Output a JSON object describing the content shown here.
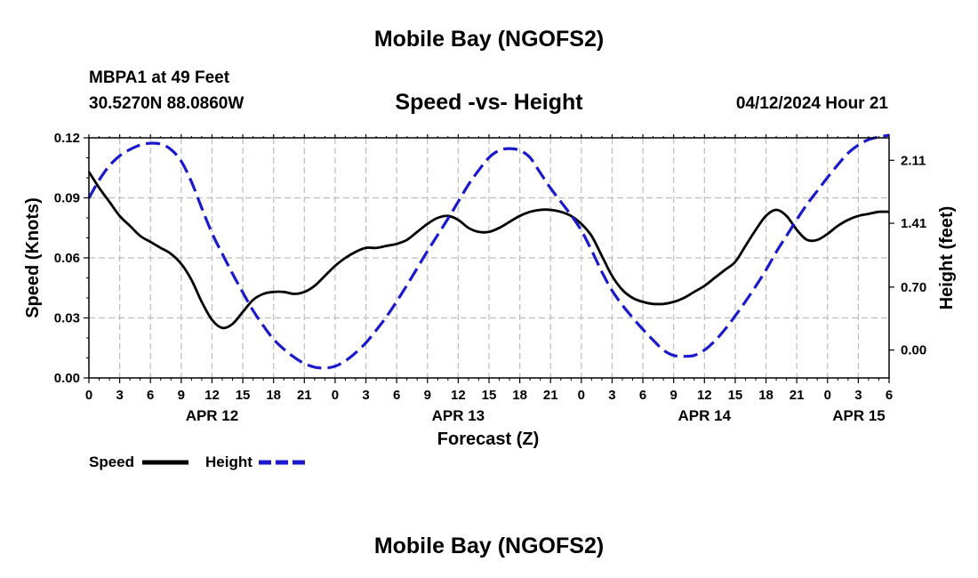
{
  "header": {
    "title": "Mobile Bay (NGOFS2)",
    "station": "MBPA1 at 49 Feet",
    "coordinates": "30.5270N  88.0860W",
    "subtitle": "Speed -vs- Height",
    "datestamp": "04/12/2024 Hour 21"
  },
  "footer": {
    "title": "Mobile Bay (NGOFS2)"
  },
  "legend": {
    "speed_label": "Speed",
    "height_label": "Height"
  },
  "colors": {
    "speed": "#000000",
    "height": "#1a1acc",
    "grid": "#bdbdbd"
  },
  "chart_data": {
    "type": "line",
    "title": "Speed -vs- Height",
    "xlabel": "Forecast (Z)",
    "ylabel": "Speed (Knots)",
    "y2label": "Height (feet)",
    "x_unit": "hours from APR 12 00Z",
    "xlim": [
      0,
      78
    ],
    "ylim": [
      0,
      0.12
    ],
    "y2lim": [
      -0.31,
      2.36
    ],
    "x_ticks": [
      {
        "x": 0,
        "label": "0"
      },
      {
        "x": 3,
        "label": "3"
      },
      {
        "x": 6,
        "label": "6"
      },
      {
        "x": 9,
        "label": "9"
      },
      {
        "x": 12,
        "label": "12"
      },
      {
        "x": 15,
        "label": "15"
      },
      {
        "x": 18,
        "label": "18"
      },
      {
        "x": 21,
        "label": "21"
      },
      {
        "x": 24,
        "label": "0"
      },
      {
        "x": 27,
        "label": "3"
      },
      {
        "x": 30,
        "label": "6"
      },
      {
        "x": 33,
        "label": "9"
      },
      {
        "x": 36,
        "label": "12"
      },
      {
        "x": 39,
        "label": "15"
      },
      {
        "x": 42,
        "label": "18"
      },
      {
        "x": 45,
        "label": "21"
      },
      {
        "x": 48,
        "label": "0"
      },
      {
        "x": 51,
        "label": "3"
      },
      {
        "x": 54,
        "label": "6"
      },
      {
        "x": 57,
        "label": "9"
      },
      {
        "x": 60,
        "label": "12"
      },
      {
        "x": 63,
        "label": "15"
      },
      {
        "x": 66,
        "label": "18"
      },
      {
        "x": 69,
        "label": "21"
      },
      {
        "x": 72,
        "label": "0"
      },
      {
        "x": 75,
        "label": "3"
      },
      {
        "x": 78,
        "label": "6"
      }
    ],
    "date_labels": [
      {
        "x": 12,
        "label": "APR 12"
      },
      {
        "x": 36,
        "label": "APR 13"
      },
      {
        "x": 60,
        "label": "APR 14"
      },
      {
        "x": 78,
        "label": "APR 15"
      }
    ],
    "y_ticks": [
      "0.00",
      "0.03",
      "0.06",
      "0.09",
      "0.12"
    ],
    "y2_ticks": [
      "0.00",
      "0.70",
      "1.41",
      "2.11"
    ],
    "grid": true,
    "series": [
      {
        "name": "Speed",
        "axis": "left",
        "style": "solid",
        "x": [
          0,
          1,
          2,
          3,
          4,
          5,
          6,
          7,
          8,
          9,
          10,
          11,
          12,
          13,
          14,
          15,
          16,
          17,
          18,
          19,
          20,
          21,
          22,
          23,
          24,
          25,
          26,
          27,
          28,
          29,
          30,
          31,
          32,
          33,
          34,
          35,
          36,
          37,
          38,
          39,
          40,
          41,
          42,
          43,
          44,
          45,
          46,
          47,
          48,
          49,
          50,
          51,
          52,
          53,
          54,
          55,
          56,
          57,
          58,
          59,
          60,
          61,
          62,
          63,
          64,
          65,
          66,
          67,
          68,
          69,
          70,
          71,
          72,
          73,
          74,
          75,
          76,
          77,
          78
        ],
        "values": [
          0.103,
          0.095,
          0.088,
          0.081,
          0.076,
          0.071,
          0.068,
          0.065,
          0.062,
          0.057,
          0.049,
          0.038,
          0.029,
          0.025,
          0.027,
          0.033,
          0.039,
          0.042,
          0.043,
          0.043,
          0.042,
          0.043,
          0.046,
          0.051,
          0.056,
          0.06,
          0.063,
          0.065,
          0.065,
          0.066,
          0.067,
          0.069,
          0.073,
          0.077,
          0.08,
          0.081,
          0.079,
          0.075,
          0.073,
          0.073,
          0.075,
          0.078,
          0.081,
          0.083,
          0.084,
          0.084,
          0.083,
          0.081,
          0.077,
          0.071,
          0.061,
          0.051,
          0.044,
          0.04,
          0.038,
          0.037,
          0.037,
          0.038,
          0.04,
          0.043,
          0.046,
          0.05,
          0.054,
          0.058,
          0.066,
          0.074,
          0.081,
          0.084,
          0.081,
          0.074,
          0.069,
          0.069,
          0.072,
          0.076,
          0.079,
          0.081,
          0.082,
          0.083,
          0.083
        ]
      },
      {
        "name": "Height",
        "axis": "right",
        "style": "dashed",
        "x": [
          0,
          1,
          2,
          3,
          4,
          5,
          6,
          7,
          8,
          9,
          10,
          11,
          12,
          13,
          14,
          15,
          16,
          17,
          18,
          19,
          20,
          21,
          22,
          23,
          24,
          25,
          26,
          27,
          28,
          29,
          30,
          31,
          32,
          33,
          34,
          35,
          36,
          37,
          38,
          39,
          40,
          41,
          42,
          43,
          44,
          45,
          46,
          47,
          48,
          49,
          50,
          51,
          52,
          53,
          54,
          55,
          56,
          57,
          58,
          59,
          60,
          61,
          62,
          63,
          64,
          65,
          66,
          67,
          68,
          69,
          70,
          71,
          72,
          73,
          74,
          75,
          76,
          77,
          78
        ],
        "values": [
          1.69,
          1.89,
          2.05,
          2.16,
          2.23,
          2.28,
          2.3,
          2.29,
          2.23,
          2.1,
          1.87,
          1.58,
          1.3,
          1.07,
          0.85,
          0.64,
          0.44,
          0.27,
          0.12,
          0.01,
          -0.08,
          -0.15,
          -0.19,
          -0.2,
          -0.18,
          -0.12,
          -0.03,
          0.08,
          0.22,
          0.37,
          0.54,
          0.72,
          0.91,
          1.1,
          1.28,
          1.46,
          1.65,
          1.84,
          2.0,
          2.14,
          2.22,
          2.24,
          2.22,
          2.14,
          1.97,
          1.8,
          1.65,
          1.5,
          1.33,
          1.11,
          0.87,
          0.66,
          0.5,
          0.36,
          0.23,
          0.11,
          0.0,
          -0.06,
          -0.07,
          -0.06,
          0.0,
          0.1,
          0.23,
          0.38,
          0.54,
          0.71,
          0.89,
          1.09,
          1.27,
          1.45,
          1.62,
          1.77,
          1.92,
          2.06,
          2.19,
          2.28,
          2.34,
          2.37,
          2.39
        ]
      }
    ]
  }
}
